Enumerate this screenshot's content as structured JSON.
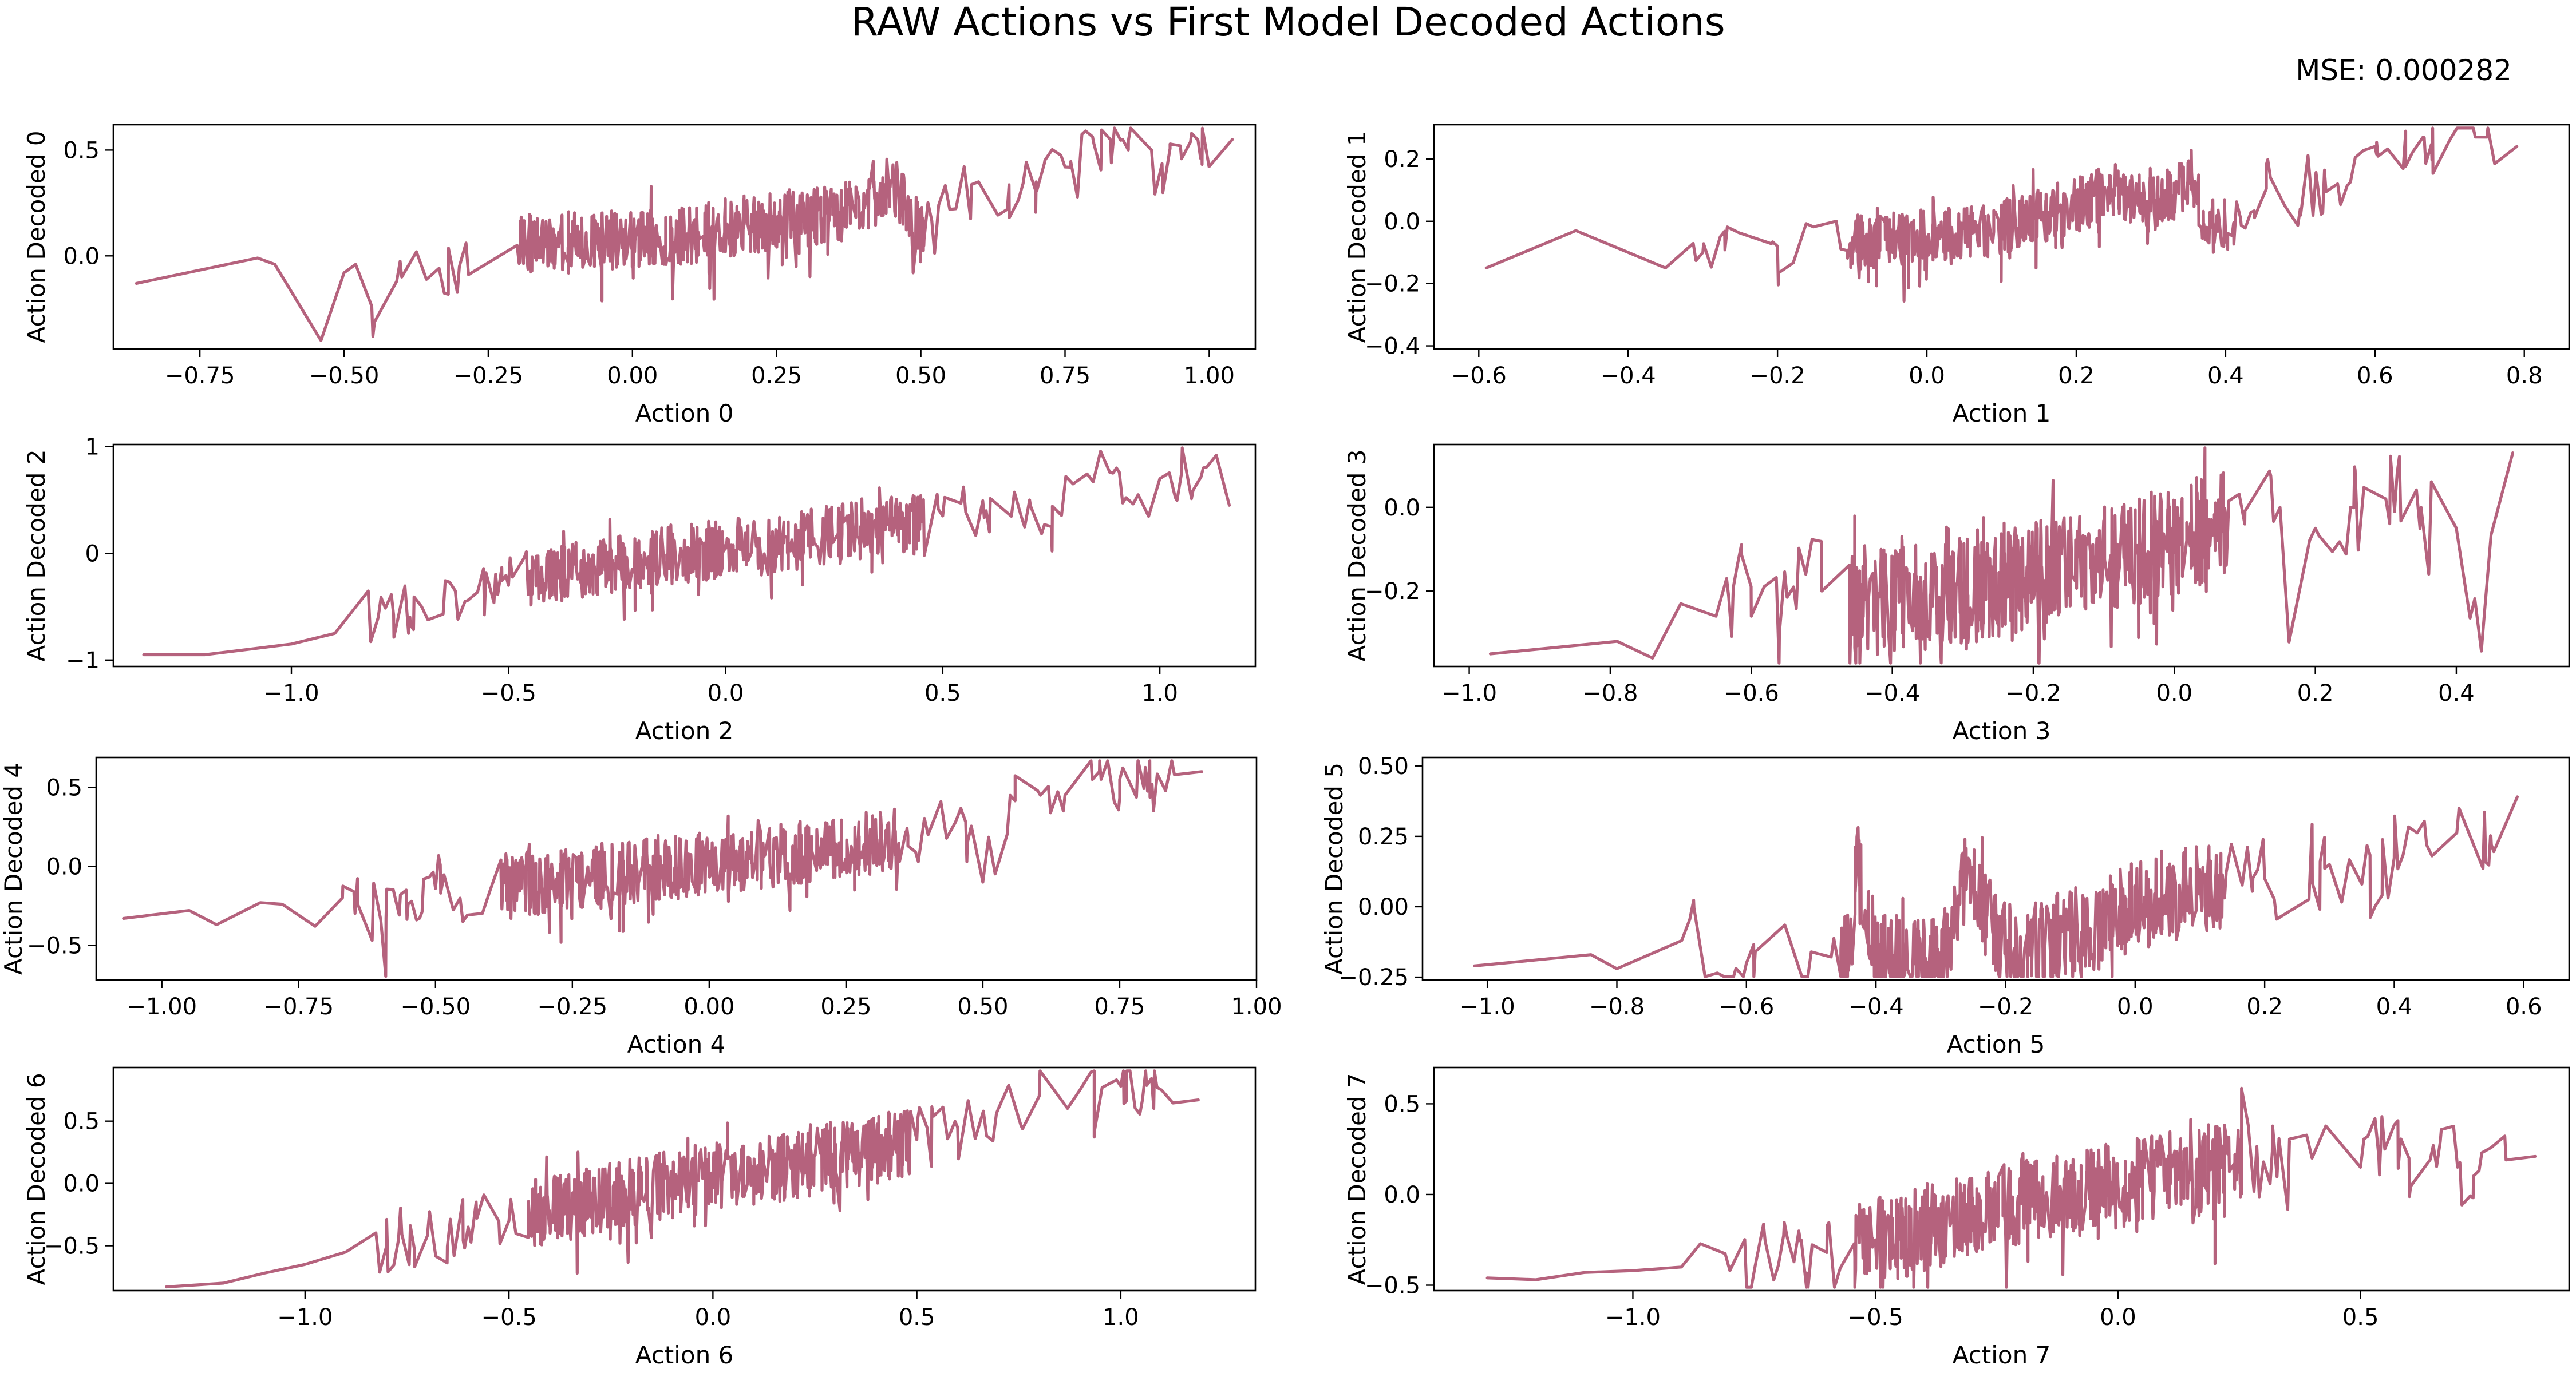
{
  "figure": {
    "title": "RAW Actions vs First Model Decoded Actions",
    "mse_label": "MSE: 0.000282",
    "line_color": "#b5627d"
  },
  "chart_data": [
    {
      "type": "line",
      "xlabel": "Action 0",
      "ylabel": "Action Decoded 0",
      "xlim": [
        -0.9,
        1.08
      ],
      "ylim": [
        -0.44,
        0.62
      ],
      "xticks": [
        -0.75,
        -0.5,
        -0.25,
        0.0,
        0.25,
        0.5,
        0.75,
        1.0
      ],
      "xtick_labels": [
        "−0.75",
        "−0.50",
        "−0.25",
        "0.00",
        "0.25",
        "0.50",
        "0.75",
        "1.00"
      ],
      "yticks": [
        0.0,
        0.5
      ],
      "ytick_labels": [
        "0.0",
        "0.5"
      ],
      "noise_amp": 0.14,
      "seed": 11,
      "points": [
        [
          -0.86,
          -0.13
        ],
        [
          -0.65,
          -0.01
        ],
        [
          -0.62,
          -0.04
        ],
        [
          -0.54,
          -0.4
        ],
        [
          -0.5,
          -0.08
        ],
        [
          -0.48,
          -0.04
        ],
        [
          -0.45,
          -0.38
        ],
        [
          -0.4,
          -0.1
        ],
        [
          -0.3,
          -0.05
        ],
        [
          -0.2,
          0.05
        ],
        [
          -0.1,
          0.08
        ],
        [
          0.0,
          0.07
        ],
        [
          0.1,
          0.1
        ],
        [
          0.2,
          0.15
        ],
        [
          0.3,
          0.18
        ],
        [
          0.4,
          0.22
        ],
        [
          0.45,
          0.35
        ],
        [
          0.5,
          0.1
        ],
        [
          0.55,
          0.22
        ],
        [
          0.6,
          0.35
        ],
        [
          0.65,
          0.22
        ],
        [
          0.7,
          0.35
        ],
        [
          0.75,
          0.42
        ],
        [
          0.8,
          0.53
        ],
        [
          0.85,
          0.55
        ],
        [
          0.9,
          0.5
        ],
        [
          0.95,
          0.52
        ],
        [
          1.04,
          0.55
        ]
      ]
    },
    {
      "type": "line",
      "xlabel": "Action 1",
      "ylabel": "Action Decoded 1",
      "xlim": [
        -0.66,
        0.86
      ],
      "ylim": [
        -0.41,
        0.31
      ],
      "xticks": [
        -0.6,
        -0.4,
        -0.2,
        0.0,
        0.2,
        0.4,
        0.6,
        0.8
      ],
      "xtick_labels": [
        "−0.6",
        "−0.4",
        "−0.2",
        "0.0",
        "0.2",
        "0.4",
        "0.6",
        "0.8"
      ],
      "yticks": [
        -0.4,
        -0.2,
        0.0,
        0.2
      ],
      "ytick_labels": [
        "−0.4",
        "−0.2",
        "0.0",
        "0.2"
      ],
      "noise_amp": 0.09,
      "seed": 23,
      "points": [
        [
          -0.59,
          -0.15
        ],
        [
          -0.47,
          -0.03
        ],
        [
          -0.4,
          -0.1
        ],
        [
          -0.35,
          -0.15
        ],
        [
          -0.3,
          -0.1
        ],
        [
          -0.2,
          -0.08
        ],
        [
          -0.1,
          -0.07
        ],
        [
          0.0,
          -0.05
        ],
        [
          0.1,
          -0.02
        ],
        [
          0.15,
          0.02
        ],
        [
          0.2,
          0.05
        ],
        [
          0.25,
          0.1
        ],
        [
          0.3,
          0.05
        ],
        [
          0.35,
          0.12
        ],
        [
          0.38,
          -0.02
        ],
        [
          0.42,
          0.01
        ],
        [
          0.46,
          0.14
        ],
        [
          0.5,
          0.04
        ],
        [
          0.55,
          0.12
        ],
        [
          0.6,
          0.24
        ],
        [
          0.65,
          0.22
        ],
        [
          0.7,
          0.26
        ],
        [
          0.75,
          0.27
        ],
        [
          0.79,
          0.24
        ]
      ]
    },
    {
      "type": "line",
      "xlabel": "Action 2",
      "ylabel": "Action Decoded 2",
      "xlim": [
        -1.41,
        1.22
      ],
      "ylim": [
        -1.06,
        1.02
      ],
      "xticks": [
        -1.0,
        -0.5,
        0.0,
        0.5,
        1.0
      ],
      "xtick_labels": [
        "−1.0",
        "−0.5",
        "0.0",
        "0.5",
        "1.0"
      ],
      "yticks": [
        -1.0,
        0.0,
        1.0
      ],
      "ytick_labels": [
        "−1",
        "0",
        "1"
      ],
      "noise_amp": 0.28,
      "seed": 37,
      "points": [
        [
          -1.34,
          -0.95
        ],
        [
          -1.2,
          -0.95
        ],
        [
          -1.1,
          -0.9
        ],
        [
          -1.0,
          -0.85
        ],
        [
          -0.9,
          -0.75
        ],
        [
          -0.8,
          -0.6
        ],
        [
          -0.7,
          -0.5
        ],
        [
          -0.6,
          -0.45
        ],
        [
          -0.5,
          -0.3
        ],
        [
          -0.4,
          -0.2
        ],
        [
          -0.3,
          -0.15
        ],
        [
          -0.2,
          -0.05
        ],
        [
          -0.1,
          0.0
        ],
        [
          0.0,
          0.05
        ],
        [
          0.1,
          0.08
        ],
        [
          0.2,
          0.15
        ],
        [
          0.3,
          0.2
        ],
        [
          0.4,
          0.28
        ],
        [
          0.5,
          0.35
        ],
        [
          0.6,
          0.4
        ],
        [
          0.7,
          0.5
        ],
        [
          0.75,
          0.25
        ],
        [
          0.8,
          0.65
        ],
        [
          0.9,
          0.8
        ],
        [
          0.95,
          0.55
        ],
        [
          1.0,
          0.7
        ],
        [
          1.05,
          0.75
        ],
        [
          1.1,
          0.8
        ],
        [
          1.13,
          0.92
        ],
        [
          1.16,
          0.45
        ]
      ]
    },
    {
      "type": "line",
      "xlabel": "Action 3",
      "ylabel": "Action Decoded 3",
      "xlim": [
        -1.05,
        0.56
      ],
      "ylim": [
        -0.38,
        0.15
      ],
      "xticks": [
        -1.0,
        -0.8,
        -0.6,
        -0.4,
        -0.2,
        0.0,
        0.2,
        0.4
      ],
      "xtick_labels": [
        "−1.0",
        "−0.8",
        "−0.6",
        "−0.4",
        "−0.2",
        "0.0",
        "0.2",
        "0.4"
      ],
      "yticks": [
        -0.2,
        0.0
      ],
      "ytick_labels": [
        "−0.2",
        "0.0"
      ],
      "noise_amp": 0.13,
      "seed": 51,
      "points": [
        [
          -0.97,
          -0.35
        ],
        [
          -0.79,
          -0.32
        ],
        [
          -0.74,
          -0.36
        ],
        [
          -0.7,
          -0.23
        ],
        [
          -0.65,
          -0.26
        ],
        [
          -0.62,
          -0.14
        ],
        [
          -0.6,
          -0.26
        ],
        [
          -0.56,
          -0.3
        ],
        [
          -0.54,
          -0.19
        ],
        [
          -0.5,
          -0.2
        ],
        [
          -0.45,
          -0.25
        ],
        [
          -0.4,
          -0.22
        ],
        [
          -0.3,
          -0.2
        ],
        [
          -0.2,
          -0.16
        ],
        [
          -0.1,
          -0.12
        ],
        [
          0.0,
          -0.08
        ],
        [
          0.05,
          -0.05
        ],
        [
          0.1,
          -0.04
        ],
        [
          0.15,
          0.0
        ],
        [
          0.2,
          -0.05
        ],
        [
          0.25,
          0.0
        ],
        [
          0.3,
          0.02
        ],
        [
          0.35,
          0.0
        ],
        [
          0.4,
          -0.05
        ],
        [
          0.44,
          -0.25
        ],
        [
          0.48,
          0.13
        ]
      ]
    },
    {
      "type": "line",
      "xlabel": "Action 4",
      "ylabel": "Action Decoded 4",
      "xlim": [
        -1.12,
        1.0
      ],
      "ylim": [
        -0.72,
        0.69
      ],
      "xticks": [
        -1.0,
        -0.75,
        -0.5,
        -0.25,
        0.0,
        0.25,
        0.5,
        0.75,
        1.0
      ],
      "xtick_labels": [
        "−1.00",
        "−0.75",
        "−0.50",
        "−0.25",
        "0.00",
        "0.25",
        "0.50",
        "0.75",
        "1.00"
      ],
      "yticks": [
        -0.5,
        0.0,
        0.5
      ],
      "ytick_labels": [
        "−0.5",
        "0.0",
        "0.5"
      ],
      "noise_amp": 0.2,
      "seed": 67,
      "points": [
        [
          -1.07,
          -0.33
        ],
        [
          -0.95,
          -0.28
        ],
        [
          -0.9,
          -0.37
        ],
        [
          -0.82,
          -0.23
        ],
        [
          -0.78,
          -0.24
        ],
        [
          -0.72,
          -0.38
        ],
        [
          -0.67,
          -0.2
        ],
        [
          -0.6,
          -0.34
        ],
        [
          -0.55,
          -0.24
        ],
        [
          -0.5,
          -0.14
        ],
        [
          -0.45,
          -0.35
        ],
        [
          -0.4,
          -0.15
        ],
        [
          -0.3,
          -0.1
        ],
        [
          -0.2,
          -0.05
        ],
        [
          -0.1,
          -0.02
        ],
        [
          0.0,
          0.02
        ],
        [
          0.1,
          0.06
        ],
        [
          0.2,
          0.1
        ],
        [
          0.3,
          0.15
        ],
        [
          0.4,
          0.2
        ],
        [
          0.45,
          0.28
        ],
        [
          0.5,
          -0.1
        ],
        [
          0.55,
          0.45
        ],
        [
          0.6,
          0.48
        ],
        [
          0.65,
          0.45
        ],
        [
          0.7,
          0.55
        ],
        [
          0.75,
          0.55
        ],
        [
          0.8,
          0.52
        ],
        [
          0.85,
          0.58
        ],
        [
          0.9,
          0.6
        ]
      ]
    },
    {
      "type": "line",
      "xlabel": "Action 5",
      "ylabel": "Action Decoded 5",
      "xlim": [
        -1.1,
        0.67
      ],
      "ylim": [
        -0.26,
        0.53
      ],
      "xticks": [
        -1.0,
        -0.8,
        -0.6,
        -0.4,
        -0.2,
        0.0,
        0.2,
        0.4,
        0.6
      ],
      "xtick_labels": [
        "−1.0",
        "−0.8",
        "−0.6",
        "−0.4",
        "−0.2",
        "0.0",
        "0.2",
        "0.4",
        "0.6"
      ],
      "yticks": [
        -0.25,
        0.0,
        0.25,
        0.5
      ],
      "ytick_labels": [
        "−0.25",
        "0.00",
        "0.25",
        "0.50"
      ],
      "noise_amp": 0.16,
      "seed": 83,
      "points": [
        [
          -1.02,
          -0.21
        ],
        [
          -0.84,
          -0.17
        ],
        [
          -0.8,
          -0.22
        ],
        [
          -0.7,
          -0.12
        ],
        [
          -0.6,
          -0.2
        ],
        [
          -0.5,
          -0.16
        ],
        [
          -0.44,
          -0.18
        ],
        [
          -0.43,
          0.15
        ],
        [
          -0.4,
          -0.17
        ],
        [
          -0.3,
          -0.2
        ],
        [
          -0.26,
          0.1
        ],
        [
          -0.2,
          -0.15
        ],
        [
          -0.1,
          -0.1
        ],
        [
          0.0,
          0.0
        ],
        [
          0.1,
          0.06
        ],
        [
          0.2,
          0.1
        ],
        [
          0.3,
          0.15
        ],
        [
          0.35,
          0.08
        ],
        [
          0.4,
          0.2
        ],
        [
          0.45,
          0.22
        ],
        [
          0.5,
          0.35
        ],
        [
          0.55,
          0.22
        ],
        [
          0.59,
          0.39
        ]
      ]
    },
    {
      "type": "line",
      "xlabel": "Action 6",
      "ylabel": "Action Decoded 6",
      "xlim": [
        -1.47,
        1.33
      ],
      "ylim": [
        -0.86,
        0.93
      ],
      "xticks": [
        -1.0,
        -0.5,
        0.0,
        0.5,
        1.0
      ],
      "xtick_labels": [
        "−1.0",
        "−0.5",
        "0.0",
        "0.5",
        "1.0"
      ],
      "yticks": [
        -0.5,
        0.0,
        0.5
      ],
      "ytick_labels": [
        "−0.5",
        "0.0",
        "0.5"
      ],
      "noise_amp": 0.28,
      "seed": 97,
      "points": [
        [
          -1.34,
          -0.83
        ],
        [
          -1.2,
          -0.8
        ],
        [
          -1.1,
          -0.72
        ],
        [
          -1.0,
          -0.65
        ],
        [
          -0.9,
          -0.55
        ],
        [
          -0.8,
          -0.5
        ],
        [
          -0.7,
          -0.42
        ],
        [
          -0.6,
          -0.35
        ],
        [
          -0.5,
          -0.3
        ],
        [
          -0.4,
          -0.22
        ],
        [
          -0.3,
          -0.15
        ],
        [
          -0.2,
          -0.08
        ],
        [
          -0.1,
          0.0
        ],
        [
          0.0,
          0.05
        ],
        [
          0.1,
          0.1
        ],
        [
          0.2,
          0.15
        ],
        [
          0.3,
          0.22
        ],
        [
          0.4,
          0.28
        ],
        [
          0.5,
          0.35
        ],
        [
          0.6,
          0.45
        ],
        [
          0.7,
          0.6
        ],
        [
          0.8,
          0.7
        ],
        [
          0.9,
          0.75
        ],
        [
          1.0,
          0.78
        ],
        [
          1.1,
          0.75
        ],
        [
          1.19,
          0.67
        ]
      ]
    },
    {
      "type": "line",
      "xlabel": "Action 7",
      "ylabel": "Action Decoded 7",
      "xlim": [
        -1.41,
        0.93
      ],
      "ylim": [
        -0.53,
        0.7
      ],
      "xticks": [
        -1.0,
        -0.5,
        0.0,
        0.5
      ],
      "xtick_labels": [
        "−1.0",
        "−0.5",
        "0.0",
        "0.5"
      ],
      "yticks": [
        -0.5,
        0.0,
        0.5
      ],
      "ytick_labels": [
        "−0.5",
        "0.0",
        "0.5"
      ],
      "noise_amp": 0.24,
      "seed": 113,
      "points": [
        [
          -1.3,
          -0.46
        ],
        [
          -1.2,
          -0.47
        ],
        [
          -1.1,
          -0.43
        ],
        [
          -1.0,
          -0.42
        ],
        [
          -0.9,
          -0.4
        ],
        [
          -0.8,
          -0.42
        ],
        [
          -0.7,
          -0.39
        ],
        [
          -0.6,
          -0.32
        ],
        [
          -0.5,
          -0.25
        ],
        [
          -0.4,
          -0.2
        ],
        [
          -0.3,
          -0.12
        ],
        [
          -0.2,
          -0.05
        ],
        [
          -0.1,
          0.0
        ],
        [
          0.0,
          0.05
        ],
        [
          0.1,
          0.12
        ],
        [
          0.2,
          0.15
        ],
        [
          0.3,
          0.18
        ],
        [
          0.4,
          0.2
        ],
        [
          0.5,
          0.15
        ],
        [
          0.55,
          0.25
        ],
        [
          0.6,
          0.2
        ],
        [
          0.65,
          0.27
        ],
        [
          0.7,
          0.15
        ],
        [
          0.75,
          0.23
        ],
        [
          0.8,
          0.19
        ],
        [
          0.86,
          0.21
        ]
      ]
    }
  ]
}
